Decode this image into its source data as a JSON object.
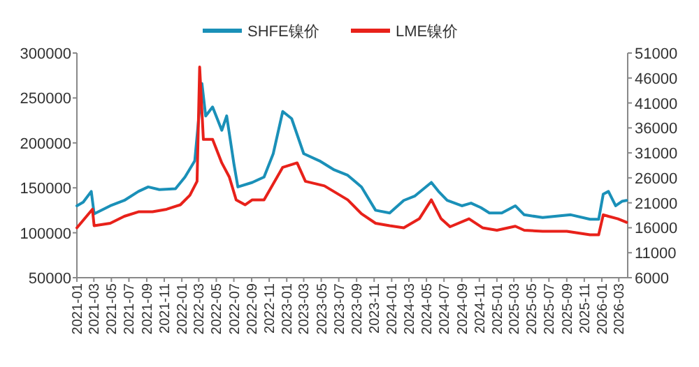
{
  "chart_data": {
    "type": "line",
    "legend": "top",
    "grid": false,
    "marker": "none",
    "line_style": "solid",
    "xlim": [
      "2021-01-01",
      "2026-04-01"
    ],
    "xticks": [
      {
        "value": "2021-01-01",
        "label": "2021-01"
      },
      {
        "value": "2021-03-01",
        "label": "2021-03"
      },
      {
        "value": "2021-05-01",
        "label": "2021-05"
      },
      {
        "value": "2021-07-01",
        "label": "2021-07"
      },
      {
        "value": "2021-09-01",
        "label": "2021-09"
      },
      {
        "value": "2021-11-01",
        "label": "2021-11"
      },
      {
        "value": "2022-01-01",
        "label": "2022-01"
      },
      {
        "value": "2022-03-01",
        "label": "2022-03"
      },
      {
        "value": "2022-05-01",
        "label": "2022-05"
      },
      {
        "value": "2022-07-01",
        "label": "2022-07"
      },
      {
        "value": "2022-09-01",
        "label": "2022-09"
      },
      {
        "value": "2022-11-01",
        "label": "2022-11"
      },
      {
        "value": "2023-01-01",
        "label": "2023-01"
      },
      {
        "value": "2023-03-01",
        "label": "2023-03"
      },
      {
        "value": "2023-05-01",
        "label": "2023-05"
      },
      {
        "value": "2023-07-01",
        "label": "2023-07"
      },
      {
        "value": "2023-09-01",
        "label": "2023-09"
      },
      {
        "value": "2023-11-01",
        "label": "2023-11"
      },
      {
        "value": "2024-01-01",
        "label": "2024-01"
      },
      {
        "value": "2024-03-01",
        "label": "2024-03"
      },
      {
        "value": "2024-05-01",
        "label": "2024-05"
      },
      {
        "value": "2024-07-01",
        "label": "2024-07"
      },
      {
        "value": "2024-09-01",
        "label": "2024-09"
      },
      {
        "value": "2024-11-01",
        "label": "2024-11"
      },
      {
        "value": "2025-01-01",
        "label": "2025-01"
      },
      {
        "value": "2025-03-01",
        "label": "2025-03"
      },
      {
        "value": "2025-05-01",
        "label": "2025-05"
      },
      {
        "value": "2025-07-01",
        "label": "2025-07"
      },
      {
        "value": "2025-09-01",
        "label": "2025-09"
      },
      {
        "value": "2025-11-01",
        "label": "2025-11"
      },
      {
        "value": "2026-01-01",
        "label": "2026-01"
      },
      {
        "value": "2026-03-01",
        "label": "2026-03"
      }
    ],
    "ylim": [
      50000,
      300000
    ],
    "yticks": [
      50000,
      100000,
      150000,
      200000,
      250000,
      300000
    ],
    "y2lim": [
      6000,
      51000
    ],
    "y2ticks": [
      6000,
      11000,
      16000,
      21000,
      26000,
      31000,
      36000,
      41000,
      46000,
      51000
    ],
    "series": [
      {
        "name": "SHFE镍价",
        "color": "#1a90b8",
        "x": [
          "2021-01-01",
          "2021-01-23",
          "2021-02-20",
          "2021-03-02",
          "2021-04-27",
          "2021-06-15",
          "2021-08-03",
          "2021-09-06",
          "2021-10-15",
          "2021-12-10",
          "2022-01-12",
          "2022-02-15",
          "2022-03-12",
          "2022-03-25",
          "2022-04-18",
          "2022-05-20",
          "2022-06-06",
          "2022-07-01",
          "2022-07-15",
          "2022-09-03",
          "2022-10-14",
          "2022-11-15",
          "2022-12-18",
          "2023-01-18",
          "2023-03-01",
          "2023-04-25",
          "2023-06-15",
          "2023-08-01",
          "2023-09-18",
          "2023-11-06",
          "2023-12-25",
          "2024-02-12",
          "2024-03-22",
          "2024-05-18",
          "2024-06-12",
          "2024-07-12",
          "2024-09-01",
          "2024-10-03",
          "2024-11-06",
          "2024-12-06",
          "2025-01-18",
          "2025-03-06",
          "2025-04-06",
          "2025-06-09",
          "2025-09-15",
          "2025-11-21",
          "2025-12-21",
          "2026-01-06",
          "2026-01-24",
          "2026-02-18",
          "2026-03-12",
          "2026-03-28"
        ],
        "values": [
          130000,
          134000,
          146000,
          121000,
          130000,
          136000,
          146000,
          151000,
          148000,
          149000,
          162000,
          180000,
          266000,
          230000,
          240000,
          214000,
          230000,
          177000,
          151000,
          156000,
          162000,
          188000,
          235000,
          227000,
          188000,
          180000,
          170000,
          164000,
          151000,
          125000,
          122000,
          136000,
          141000,
          156000,
          146000,
          136000,
          130000,
          133000,
          128000,
          122000,
          122000,
          130000,
          120000,
          117000,
          120000,
          115000,
          115000,
          143000,
          146000,
          130000,
          135000,
          136000
        ]
      },
      {
        "name": "LME镍价",
        "color": "#e8211a",
        "axis": "y2",
        "x": [
          "2021-01-01",
          "2021-02-24",
          "2021-03-02",
          "2021-04-27",
          "2021-06-15",
          "2021-08-03",
          "2021-09-21",
          "2021-11-09",
          "2021-12-27",
          "2022-01-29",
          "2022-02-23",
          "2022-03-04",
          "2022-03-17",
          "2022-04-18",
          "2022-05-20",
          "2022-06-15",
          "2022-07-09",
          "2022-08-09",
          "2022-09-03",
          "2022-10-14",
          "2022-11-15",
          "2022-12-18",
          "2023-02-06",
          "2023-03-07",
          "2023-05-12",
          "2023-08-01",
          "2023-09-18",
          "2023-11-06",
          "2023-12-25",
          "2024-02-12",
          "2024-04-06",
          "2024-05-18",
          "2024-06-21",
          "2024-07-22",
          "2024-09-26",
          "2024-11-12",
          "2025-01-01",
          "2025-03-06",
          "2025-04-06",
          "2025-06-09",
          "2025-09-01",
          "2025-11-21",
          "2025-12-21",
          "2026-01-06",
          "2026-01-24",
          "2026-02-26",
          "2026-03-28"
        ],
        "values": [
          16000,
          19700,
          16400,
          16900,
          18300,
          19200,
          19200,
          19700,
          20600,
          22500,
          25300,
          48200,
          33700,
          33700,
          29000,
          26200,
          21600,
          20600,
          21600,
          21600,
          24800,
          28100,
          29000,
          25300,
          24400,
          21600,
          18800,
          16900,
          16400,
          16000,
          17800,
          21600,
          17800,
          16200,
          17800,
          16000,
          15500,
          16300,
          15500,
          15300,
          15300,
          14600,
          14600,
          18600,
          18300,
          17800,
          17100
        ]
      }
    ]
  }
}
